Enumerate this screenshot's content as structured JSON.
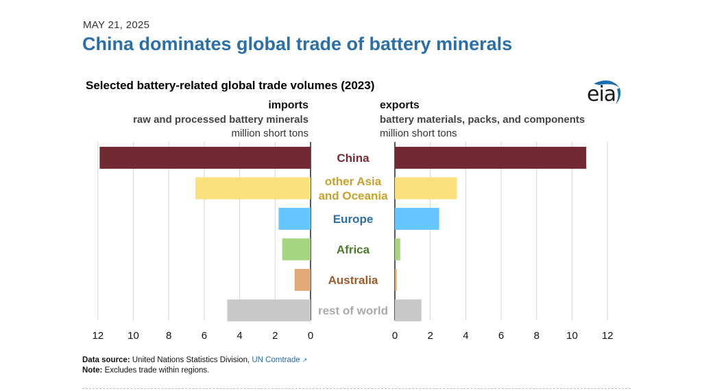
{
  "header": {
    "date": "MAY 21, 2025",
    "headline": "China dominates global trade of battery minerals"
  },
  "logo": {
    "text": "eia",
    "icon": "eia-logo-icon",
    "color": "#1a6fb0"
  },
  "panels": {
    "imports": {
      "title": "imports",
      "subtitle": "raw and processed battery minerals",
      "unit": "million short tons"
    },
    "exports": {
      "title": "exports",
      "subtitle": "battery materials, packs, and components",
      "unit": "million short tons"
    }
  },
  "chart_data": {
    "type": "bar",
    "title": "Selected battery-related global trade volumes (2023)",
    "orientation": "horizontal",
    "layout": "back-to-back",
    "categories": [
      "China",
      "other Asia and Oceania",
      "Europe",
      "Africa",
      "Australia",
      "rest of world"
    ],
    "category_lines": [
      [
        "China"
      ],
      [
        "other Asia",
        "and Oceania"
      ],
      [
        "Europe"
      ],
      [
        "Africa"
      ],
      [
        "Australia"
      ],
      [
        "rest of world"
      ]
    ],
    "label_colors": [
      "#7a2a30",
      "#c9a227",
      "#2a6fa8",
      "#4b7a2a",
      "#a05a2a",
      "#aaaaaa"
    ],
    "bar_colors": [
      "#722a32",
      "#fbe07e",
      "#66c6ff",
      "#a6d480",
      "#e0aa78",
      "#c8c8c8"
    ],
    "series": [
      {
        "name": "imports",
        "values": [
          11.9,
          6.5,
          1.8,
          1.6,
          0.9,
          4.7
        ]
      },
      {
        "name": "exports",
        "values": [
          10.8,
          3.5,
          2.5,
          0.3,
          0.1,
          1.5
        ]
      }
    ],
    "xlim": [
      0,
      12
    ],
    "xticks": [
      0,
      2,
      4,
      6,
      8,
      10,
      12
    ],
    "grid": true
  },
  "footer": {
    "source_label": "Data source:",
    "source_text": "United Nations Statistics Division,",
    "source_link": "UN Comtrade",
    "note_label": "Note:",
    "note_text": "Excludes trade within regions."
  }
}
